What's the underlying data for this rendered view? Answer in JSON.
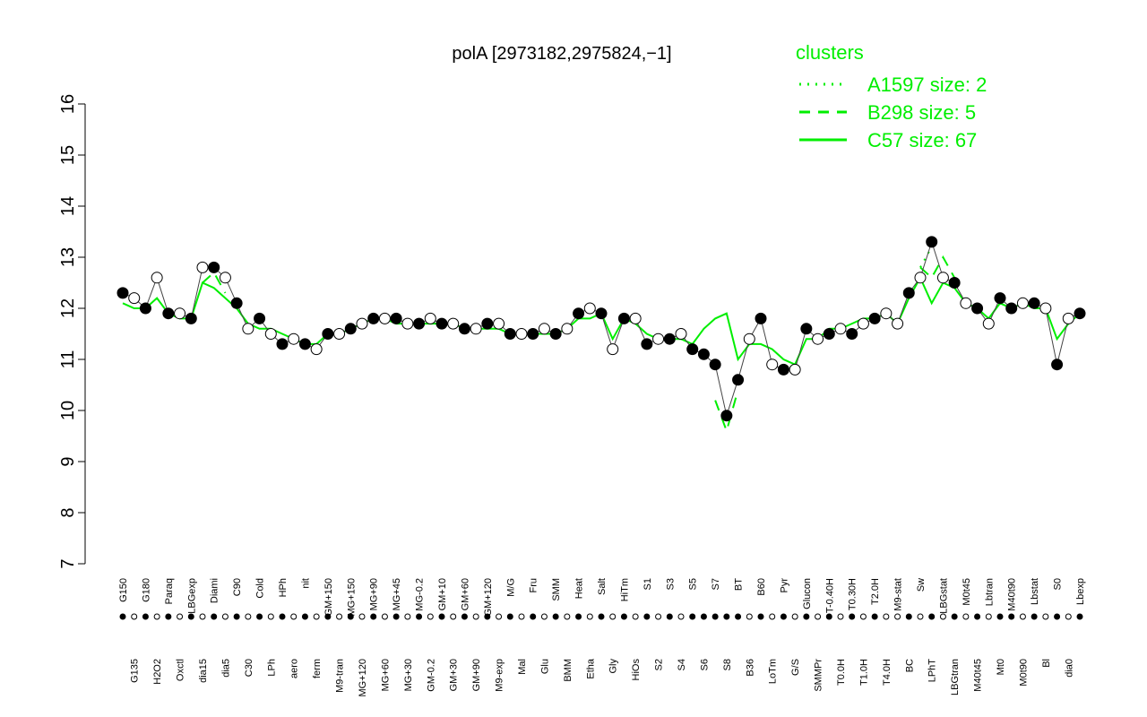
{
  "chart_data": {
    "type": "line",
    "title": "polA [2973182,2975824,−1]",
    "legend_title": "clusters",
    "categories": [
      "G150",
      "G135",
      "G180",
      "H2O2",
      "Paraq",
      "Oxctl",
      "LBGexp",
      "dia15",
      "Diami",
      "dia5",
      "C90",
      "C30",
      "Cold",
      "LPh",
      "HPh",
      "aero",
      "nit",
      "ferm",
      "GM+150",
      "M9-tran",
      "MG+150",
      "MG+120",
      "MG+90",
      "MG+60",
      "MG+45",
      "MG+30",
      "MG-0.2",
      "GM-0.2",
      "GM+10",
      "GM+30",
      "GM+60",
      "GM+90",
      "GM+120",
      "M9-exp",
      "M/G",
      "Mal",
      "Fru",
      "Glu",
      "SMM",
      "BMM",
      "Heat",
      "Etha",
      "Salt",
      "Gly",
      "HiTm",
      "HiOs",
      "S1",
      "S2",
      "S3",
      "S4",
      "S5",
      "S6",
      "S7",
      "S8",
      "BT",
      "B36",
      "B60",
      "LoTm",
      "Pyr",
      "G/S",
      "Glucon",
      "SMMPr",
      "T-0.40H",
      "T0.0H",
      "T0.30H",
      "T1.0H",
      "T2.0H",
      "T4.0H",
      "M9-stat",
      "BC",
      "Sw",
      "LPhT",
      "LBGstat",
      "LBGtran",
      "M0t45",
      "M40t45",
      "Lbtran",
      "Mt0",
      "M40t90",
      "M0t90",
      "Lbstat",
      "Bl",
      "S0",
      "dia0",
      "Lbexp"
    ],
    "values": [
      12.3,
      12.2,
      12.0,
      12.6,
      11.9,
      11.9,
      11.8,
      12.8,
      12.8,
      12.6,
      12.1,
      11.6,
      11.8,
      11.5,
      11.3,
      11.4,
      11.3,
      11.2,
      11.5,
      11.5,
      11.6,
      11.7,
      11.8,
      11.8,
      11.8,
      11.7,
      11.7,
      11.8,
      11.7,
      11.7,
      11.6,
      11.6,
      11.7,
      11.7,
      11.5,
      11.5,
      11.5,
      11.6,
      11.5,
      11.6,
      11.9,
      12.0,
      11.9,
      11.2,
      11.8,
      11.8,
      11.3,
      11.4,
      11.4,
      11.5,
      11.2,
      11.1,
      10.9,
      9.9,
      10.6,
      11.4,
      11.8,
      10.9,
      10.8,
      10.8,
      11.6,
      11.4,
      11.5,
      11.6,
      11.5,
      11.7,
      11.8,
      11.9,
      11.7,
      12.3,
      12.6,
      13.3,
      12.6,
      12.5,
      12.1,
      12.0,
      11.7,
      12.2,
      12.0,
      12.1,
      12.1,
      12.0,
      10.9,
      11.8,
      11.9
    ],
    "filled": [
      true,
      false,
      true,
      false,
      true,
      false,
      true,
      false,
      true,
      false,
      true,
      false,
      true,
      false,
      true,
      false,
      true,
      false,
      true,
      false,
      true,
      false,
      true,
      false,
      true,
      false,
      true,
      false,
      true,
      false,
      true,
      false,
      true,
      false,
      true,
      false,
      true,
      false,
      true,
      false,
      true,
      false,
      true,
      false,
      true,
      false,
      true,
      false,
      true,
      false,
      true,
      true,
      true,
      true,
      true,
      false,
      true,
      false,
      true,
      false,
      true,
      false,
      true,
      false,
      true,
      false,
      true,
      false,
      false,
      true,
      false,
      true,
      false,
      true,
      false,
      true,
      false,
      true,
      true,
      false,
      true,
      false,
      true,
      false,
      true
    ],
    "series": [
      {
        "name": "A1597 size: 2",
        "color": "#00ee00",
        "dash": "dotted",
        "pieces": [
          {
            "categories": [
              "Sw",
              "LPhT"
            ],
            "values": [
              12.8,
              13.2
            ]
          }
        ]
      },
      {
        "name": "B298 size: 5",
        "color": "#00ee00",
        "dash": "dashed",
        "pieces": [
          {
            "categories": [
              "dia15",
              "Diami",
              "dia5"
            ],
            "values": [
              12.5,
              12.7,
              12.3
            ]
          },
          {
            "categories": [
              "S7",
              "S8",
              "BT"
            ],
            "values": [
              10.2,
              9.6,
              10.4
            ]
          },
          {
            "categories": [
              "Sw",
              "LPhT",
              "LBGstat",
              "LBGtran"
            ],
            "values": [
              12.8,
              12.6,
              13.0,
              12.6
            ]
          }
        ]
      },
      {
        "name": "C57 size: 67",
        "color": "#00ee00",
        "dash": "solid",
        "values": [
          12.1,
          12.0,
          12.0,
          12.2,
          11.9,
          11.8,
          11.8,
          12.5,
          12.4,
          12.2,
          12.0,
          11.7,
          11.6,
          11.6,
          11.5,
          11.4,
          11.3,
          11.3,
          11.5,
          11.5,
          11.6,
          11.7,
          11.8,
          11.8,
          11.7,
          11.7,
          11.7,
          11.7,
          11.7,
          11.7,
          11.6,
          11.6,
          11.6,
          11.6,
          11.5,
          11.5,
          11.5,
          11.5,
          11.5,
          11.6,
          11.8,
          11.8,
          11.9,
          11.4,
          11.8,
          11.7,
          11.5,
          11.4,
          11.4,
          11.4,
          11.3,
          11.6,
          11.8,
          11.9,
          11.0,
          11.3,
          11.3,
          11.2,
          11.0,
          10.9,
          11.4,
          11.4,
          11.6,
          11.6,
          11.7,
          11.8,
          11.8,
          11.9,
          11.7,
          12.2,
          12.6,
          12.1,
          12.5,
          12.4,
          12.1,
          12.0,
          11.8,
          12.1,
          12.0,
          12.1,
          12.0,
          12.0,
          11.4,
          11.7,
          11.9
        ]
      }
    ],
    "ylim": [
      7,
      16
    ],
    "yticks": [
      7,
      8,
      9,
      10,
      11,
      12,
      13,
      14,
      15,
      16
    ]
  }
}
